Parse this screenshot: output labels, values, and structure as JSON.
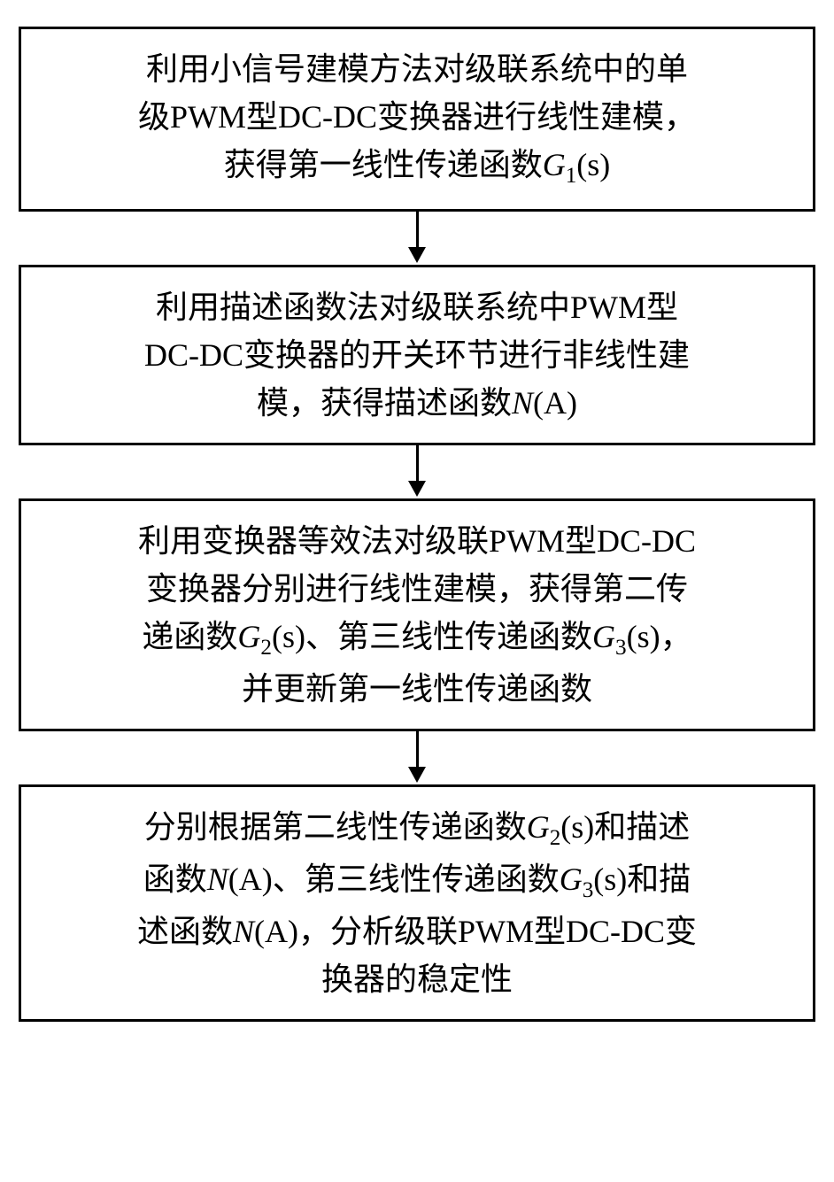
{
  "flowchart": {
    "type": "flowchart",
    "direction": "vertical",
    "box_border_color": "#000000",
    "box_border_width": 3,
    "box_background_color": "#ffffff",
    "text_color": "#000000",
    "font_size": 36,
    "font_family": "SimSun",
    "arrow_color": "#000000",
    "arrow_line_width": 3,
    "steps": [
      {
        "id": "step1",
        "lines": [
          "利用小信号建模方法对级联系统中的单",
          "级PWM型DC-DC变换器进行线性建模，",
          "获得第一线性传递函数<i>G</i><sub>1</sub>(s)"
        ]
      },
      {
        "id": "step2",
        "lines": [
          "利用描述函数法对级联系统中PWM型",
          "DC-DC变换器的开关环节进行非线性建",
          "模，获得描述函数<i>N</i>(A)"
        ]
      },
      {
        "id": "step3",
        "lines": [
          "利用变换器等效法对级联PWM型DC-DC",
          "变换器分别进行线性建模，获得第二传",
          "递函数<i>G</i><sub>2</sub>(s)、第三线性传递函数<i>G</i><sub>3</sub>(s)，",
          "并更新第一线性传递函数"
        ]
      },
      {
        "id": "step4",
        "lines": [
          "分别根据第二线性传递函数<i>G</i><sub>2</sub>(s)和描述",
          "函数<i>N</i>(A)、第三线性传递函数<i>G</i><sub>3</sub>(s)和描",
          "述函数<i>N</i>(A)，分析级联PWM型DC-DC变",
          "换器的稳定性"
        ]
      }
    ],
    "edges": [
      {
        "from": "step1",
        "to": "step2"
      },
      {
        "from": "step2",
        "to": "step3"
      },
      {
        "from": "step3",
        "to": "step4"
      }
    ]
  }
}
